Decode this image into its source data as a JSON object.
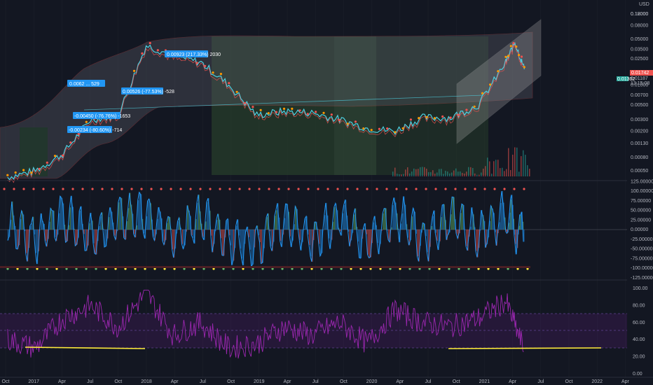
{
  "currency": "USD",
  "colors": {
    "background": "#131722",
    "grid": "#1e222d",
    "up": "#26a69a",
    "down": "#ef5350",
    "cyan": "#4dd0e1",
    "channel": "#e0e0e0",
    "momentum_line": "#2196f3",
    "rsi": "#9c27b0",
    "highlight": "#ffeb3b",
    "current_price_bg": "#ef5350",
    "ma_label_bg": "#26a69a"
  },
  "price_axis": {
    "scale": "log",
    "ticks": [
      "0.18000",
      "0.12000",
      "0.08000",
      "0.05000",
      "0.03500",
      "0.02500",
      "0.01500",
      "0.01000",
      "0.00700",
      "0.00500",
      "0.00300",
      "0.00200",
      "0.00130",
      "0.00080",
      "0.00050"
    ],
    "current_price": "0.01742",
    "sub_labels": [
      "0.01187",
      "13:15:08"
    ],
    "ma_label": "0.01302"
  },
  "osc_axis": {
    "ticks": [
      "125.00000",
      "100.00000",
      "75.00000",
      "50.00000",
      "25.00000",
      "0.00000",
      "-25.00000",
      "-50.00000",
      "-75.00000",
      "-100.00000",
      "-125.00000"
    ]
  },
  "rsi_axis": {
    "ticks": [
      "100.00",
      "80.00",
      "60.00",
      "40.00",
      "20.00",
      "0.00"
    ]
  },
  "time_axis": {
    "labels": [
      "Oct",
      "2017",
      "Apr",
      "Jul",
      "Oct",
      "2018",
      "Apr",
      "Jul",
      "Oct",
      "2019",
      "Apr",
      "Jul",
      "Oct",
      "2020",
      "Apr",
      "Jul",
      "Oct",
      "2021",
      "Apr",
      "Jul",
      "Oct",
      "2022",
      "Apr"
    ]
  },
  "annotations": [
    {
      "text": "0.00923 (217.33%) 2030"
    },
    {
      "text": "0.0062 ... 529"
    },
    {
      "text": "0.00526 (-77.53%) -528"
    },
    {
      "text": "-0.00450 (-76.76%) -1653"
    },
    {
      "text": "-0.00234 (-80.60%) -714"
    }
  ],
  "chart_data": [
    {
      "type": "line",
      "panel": "price",
      "scale": "log",
      "x": [
        "2016-10",
        "2017-01",
        "2017-04",
        "2017-07",
        "2017-10",
        "2018-01",
        "2018-04",
        "2018-07",
        "2018-10",
        "2019-01",
        "2019-04",
        "2019-07",
        "2019-10",
        "2020-01",
        "2020-04",
        "2020-07",
        "2020-10",
        "2021-01",
        "2021-04",
        "2021-05",
        "2021-06"
      ],
      "series": [
        {
          "values": [
            0.0004,
            0.0005,
            0.0009,
            0.003,
            0.0035,
            0.04,
            0.028,
            0.022,
            0.01,
            0.0035,
            0.004,
            0.0038,
            0.003,
            0.0022,
            0.002,
            0.0032,
            0.0032,
            0.005,
            0.022,
            0.045,
            0.0174
          ]
        }
      ]
    },
    {
      "type": "line",
      "panel": "momentum",
      "ylim": [
        -125,
        125
      ],
      "x": [
        "2016-10",
        "2017-01",
        "2017-04",
        "2017-07",
        "2017-10",
        "2018-01",
        "2018-04",
        "2018-07",
        "2018-10",
        "2019-01",
        "2019-04",
        "2019-07",
        "2019-10",
        "2020-01",
        "2020-04",
        "2020-07",
        "2020-10",
        "2021-01",
        "2021-04",
        "2021-06"
      ],
      "series": [
        {
          "values": [
            30,
            -60,
            80,
            -50,
            60,
            90,
            -40,
            70,
            -70,
            -80,
            60,
            -55,
            70,
            -75,
            85,
            -50,
            65,
            -30,
            95,
            -60
          ]
        }
      ]
    },
    {
      "type": "line",
      "panel": "rsi",
      "ylim": [
        0,
        100
      ],
      "x": [
        "2016-10",
        "2017-01",
        "2017-04",
        "2017-07",
        "2017-10",
        "2018-01",
        "2018-04",
        "2018-07",
        "2018-10",
        "2019-01",
        "2019-04",
        "2019-07",
        "2019-10",
        "2020-01",
        "2020-04",
        "2020-07",
        "2020-10",
        "2021-01",
        "2021-04",
        "2021-06"
      ],
      "series": [
        {
          "values": [
            40,
            30,
            65,
            80,
            55,
            95,
            45,
            60,
            30,
            35,
            55,
            45,
            60,
            35,
            75,
            60,
            55,
            65,
            85,
            28
          ]
        }
      ]
    }
  ]
}
